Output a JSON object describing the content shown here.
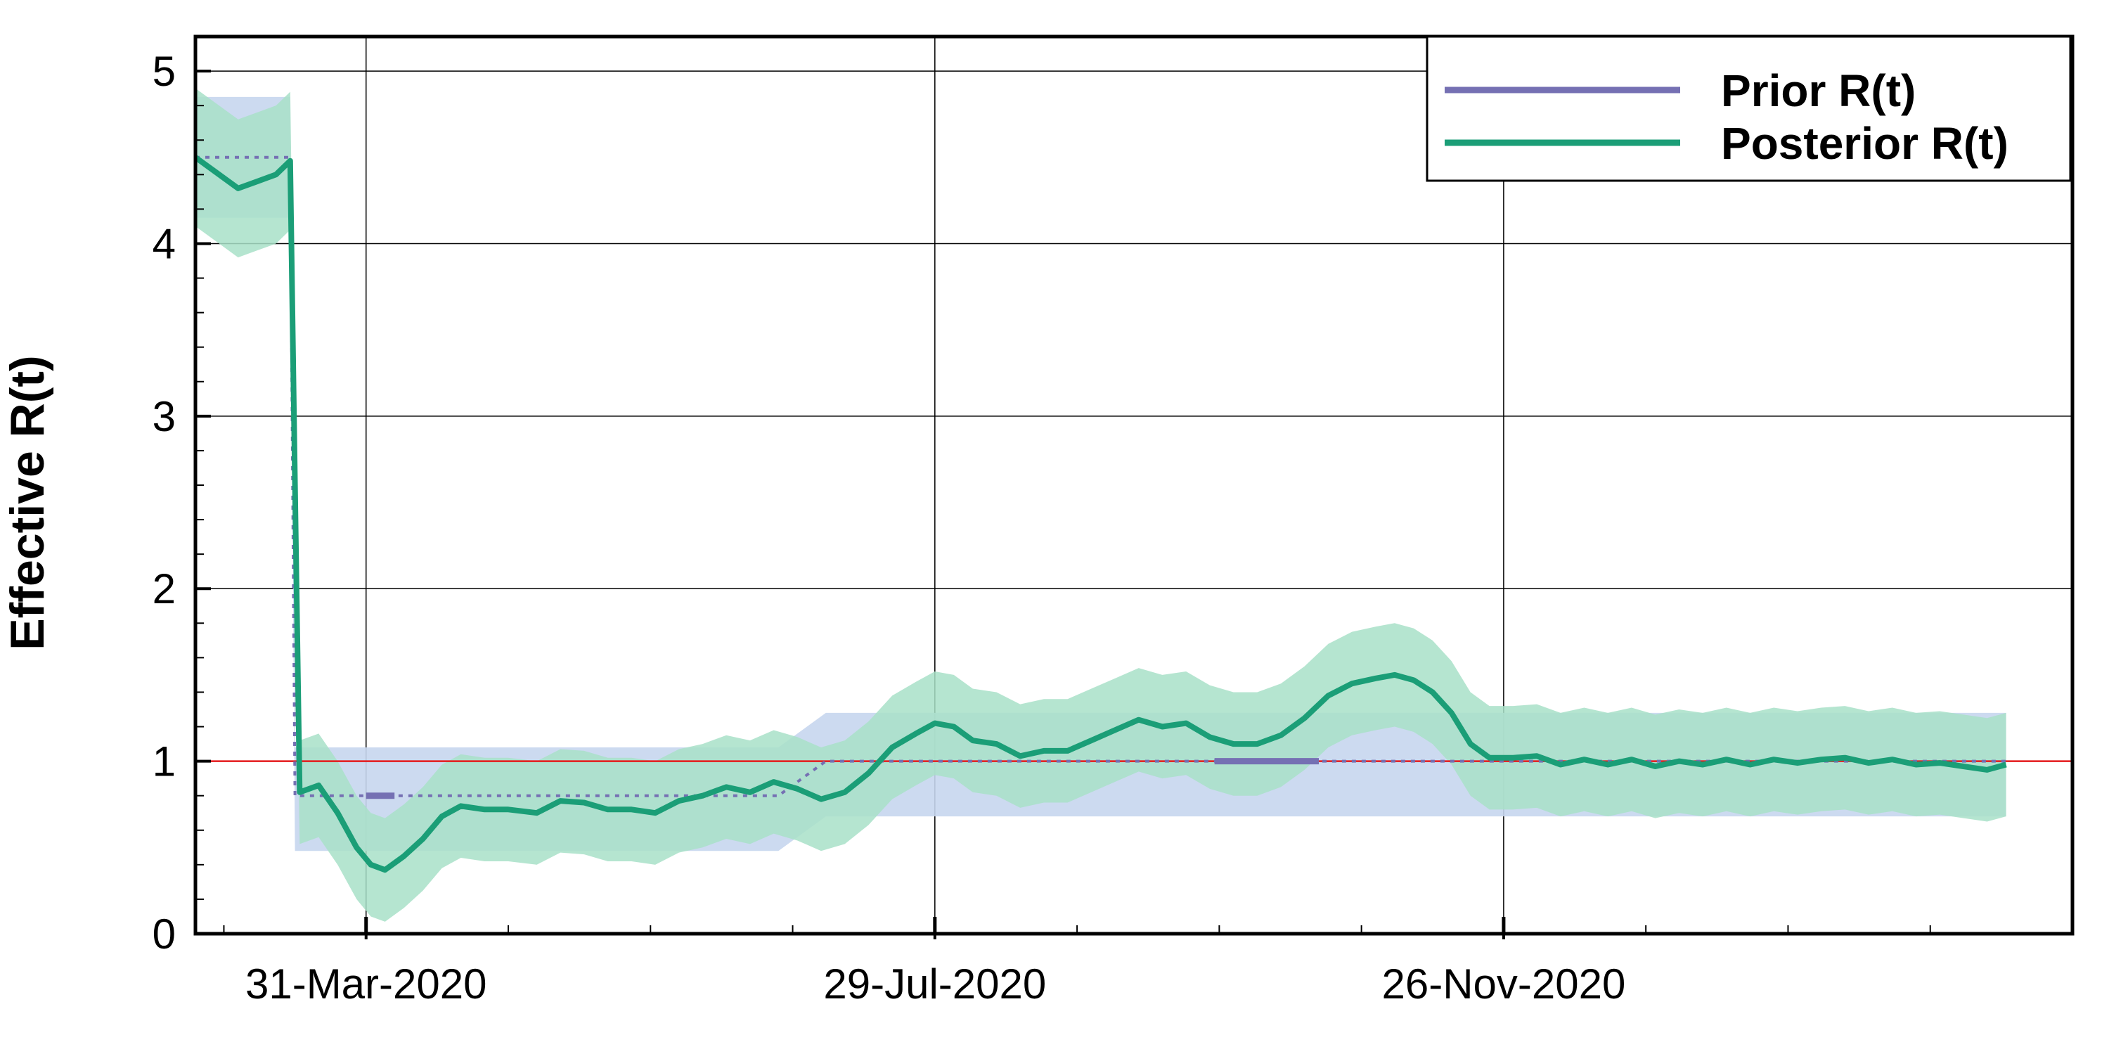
{
  "chart_data": {
    "type": "line",
    "title": "",
    "xlabel": "",
    "ylabel": "Effective R(t)",
    "ylim": [
      0,
      5.2
    ],
    "xlim": [
      "2020-02-24",
      "2021-03-26"
    ],
    "yticks": [
      0,
      1,
      2,
      3,
      4,
      5
    ],
    "ytick_labels": [
      "0",
      "1",
      "2",
      "3",
      "4",
      "5"
    ],
    "xticks": [
      "2020-03-31",
      "2020-07-29",
      "2020-11-26"
    ],
    "xtick_labels": [
      "31-Mar-2020",
      "29-Jul-2020",
      "26-Nov-2020"
    ],
    "x_minor_tick_step_days": 30,
    "y_minor_tick_step": 0.2,
    "grid": true,
    "legend_position": "top-right",
    "reference_line": {
      "y": 1,
      "color": "#e41a1c"
    },
    "colors": {
      "prior": "#7570b3",
      "posterior": "#1b9e77",
      "prior_samples": "#c6d6ee",
      "posterior_samples": "#a8e0c8"
    },
    "series": [
      {
        "name": "Prior R(t)",
        "style": "solid",
        "points": [
          [
            "2020-03-31",
            0.8
          ],
          [
            "2020-04-06",
            0.8
          ],
          [
            "2020-09-26",
            1.0
          ],
          [
            "2020-10-18",
            1.0
          ]
        ]
      },
      {
        "name": "Posterior R(t)",
        "style": "solid",
        "points": [
          [
            "2020-02-24",
            4.5
          ],
          [
            "2020-02-28",
            4.42
          ],
          [
            "2020-03-04",
            4.32
          ],
          [
            "2020-03-08",
            4.36
          ],
          [
            "2020-03-12",
            4.4
          ],
          [
            "2020-03-15",
            4.48
          ],
          [
            "2020-03-16",
            2.6
          ],
          [
            "2020-03-17",
            0.82
          ],
          [
            "2020-03-21",
            0.86
          ],
          [
            "2020-03-25",
            0.7
          ],
          [
            "2020-03-29",
            0.5
          ],
          [
            "2020-04-01",
            0.4
          ],
          [
            "2020-04-04",
            0.37
          ],
          [
            "2020-04-08",
            0.45
          ],
          [
            "2020-04-12",
            0.55
          ],
          [
            "2020-04-16",
            0.68
          ],
          [
            "2020-04-20",
            0.74
          ],
          [
            "2020-04-25",
            0.72
          ],
          [
            "2020-04-30",
            0.72
          ],
          [
            "2020-05-06",
            0.7
          ],
          [
            "2020-05-11",
            0.77
          ],
          [
            "2020-05-16",
            0.76
          ],
          [
            "2020-05-21",
            0.72
          ],
          [
            "2020-05-26",
            0.72
          ],
          [
            "2020-05-31",
            0.7
          ],
          [
            "2020-06-05",
            0.77
          ],
          [
            "2020-06-10",
            0.8
          ],
          [
            "2020-06-15",
            0.85
          ],
          [
            "2020-06-20",
            0.82
          ],
          [
            "2020-06-25",
            0.88
          ],
          [
            "2020-06-30",
            0.84
          ],
          [
            "2020-07-05",
            0.78
          ],
          [
            "2020-07-10",
            0.82
          ],
          [
            "2020-07-15",
            0.93
          ],
          [
            "2020-07-20",
            1.08
          ],
          [
            "2020-07-25",
            1.16
          ],
          [
            "2020-07-29",
            1.22
          ],
          [
            "2020-08-02",
            1.2
          ],
          [
            "2020-08-06",
            1.12
          ],
          [
            "2020-08-11",
            1.1
          ],
          [
            "2020-08-16",
            1.03
          ],
          [
            "2020-08-21",
            1.06
          ],
          [
            "2020-08-26",
            1.06
          ],
          [
            "2020-08-31",
            1.12
          ],
          [
            "2020-09-05",
            1.18
          ],
          [
            "2020-09-10",
            1.24
          ],
          [
            "2020-09-15",
            1.2
          ],
          [
            "2020-09-20",
            1.22
          ],
          [
            "2020-09-25",
            1.14
          ],
          [
            "2020-09-30",
            1.1
          ],
          [
            "2020-10-05",
            1.1
          ],
          [
            "2020-10-10",
            1.15
          ],
          [
            "2020-10-15",
            1.25
          ],
          [
            "2020-10-20",
            1.38
          ],
          [
            "2020-10-25",
            1.45
          ],
          [
            "2020-10-30",
            1.48
          ],
          [
            "2020-11-03",
            1.5
          ],
          [
            "2020-11-07",
            1.47
          ],
          [
            "2020-11-11",
            1.4
          ],
          [
            "2020-11-15",
            1.28
          ],
          [
            "2020-11-19",
            1.1
          ],
          [
            "2020-11-23",
            1.02
          ],
          [
            "2020-11-28",
            1.02
          ],
          [
            "2020-12-03",
            1.03
          ],
          [
            "2020-12-08",
            0.98
          ],
          [
            "2020-12-13",
            1.01
          ],
          [
            "2020-12-18",
            0.98
          ],
          [
            "2020-12-23",
            1.01
          ],
          [
            "2020-12-28",
            0.97
          ],
          [
            "2021-01-02",
            1.0
          ],
          [
            "2021-01-07",
            0.98
          ],
          [
            "2021-01-12",
            1.01
          ],
          [
            "2021-01-17",
            0.98
          ],
          [
            "2021-01-22",
            1.01
          ],
          [
            "2021-01-27",
            0.99
          ],
          [
            "2021-02-01",
            1.01
          ],
          [
            "2021-02-06",
            1.02
          ],
          [
            "2021-02-11",
            0.99
          ],
          [
            "2021-02-16",
            1.01
          ],
          [
            "2021-02-21",
            0.98
          ],
          [
            "2021-02-26",
            0.99
          ],
          [
            "2021-03-03",
            0.97
          ],
          [
            "2021-03-08",
            0.95
          ],
          [
            "2021-03-12",
            0.98
          ]
        ]
      },
      {
        "name": "Prior R(t) reference",
        "style": "dotted",
        "points": [
          [
            "2020-02-24",
            4.5
          ],
          [
            "2020-03-15",
            4.5
          ],
          [
            "2020-03-16",
            0.8
          ],
          [
            "2020-06-26",
            0.8
          ],
          [
            "2020-07-06",
            1.0
          ],
          [
            "2021-03-12",
            1.0
          ]
        ]
      }
    ]
  },
  "legend": {
    "prior_label": "Prior R(t)",
    "posterior_label": "Posterior R(t)"
  }
}
